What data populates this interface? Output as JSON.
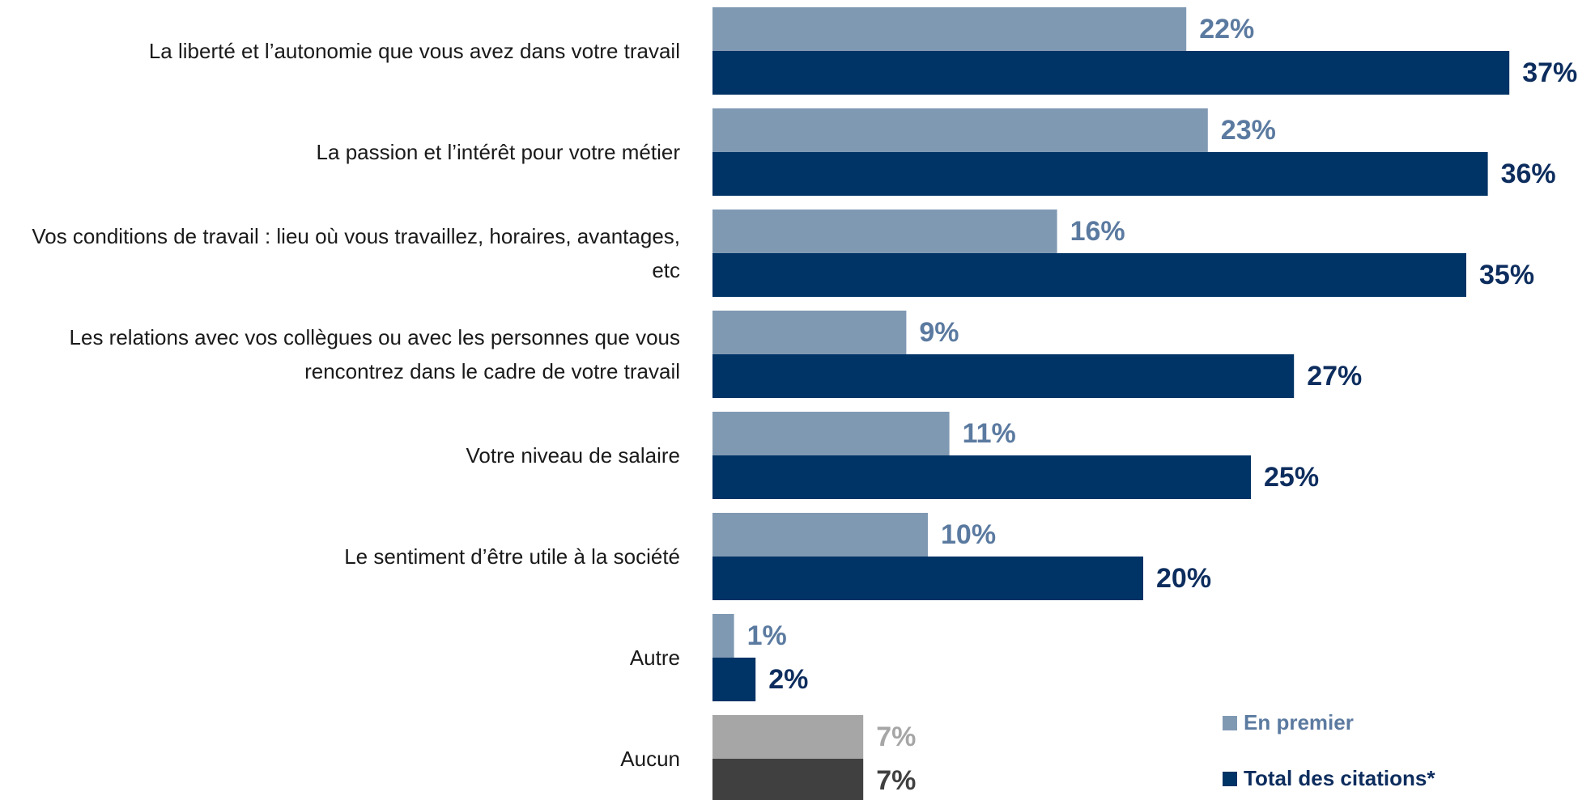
{
  "chart_data": {
    "type": "hbar",
    "categories": [
      "La liberté et l’autonomie que vous avez dans votre travail",
      "La passion et l’intérêt pour votre métier",
      "Vos conditions de travail : lieu où vous travaillez, horaires, avantages, etc",
      "Les relations avec vos collègues ou avec les personnes que vous rencontrez dans le cadre de votre travail",
      "Votre niveau de salaire",
      "Le sentiment d’être utile à la société",
      "Autre",
      "Aucun"
    ],
    "series": [
      {
        "name": "En premier",
        "color": "#8099b3",
        "label_color": "#5b7aa0",
        "colors": [
          "#8099b3",
          "#8099b3",
          "#8099b3",
          "#8099b3",
          "#8099b3",
          "#8099b3",
          "#8099b3",
          "#a6a6a6"
        ],
        "label_colors": [
          "#5b7aa0",
          "#5b7aa0",
          "#5b7aa0",
          "#5b7aa0",
          "#5b7aa0",
          "#5b7aa0",
          "#5b7aa0",
          "#a6a6a6"
        ],
        "values": [
          22,
          23,
          16,
          9,
          11,
          10,
          1,
          7
        ],
        "value_labels": [
          "22%",
          "23%",
          "16%",
          "9%",
          "11%",
          "10%",
          "1%",
          "7%"
        ]
      },
      {
        "name": "Total des citations*",
        "color": "#003366",
        "label_color": "#0d2d5e",
        "colors": [
          "#003366",
          "#003366",
          "#003366",
          "#003366",
          "#003366",
          "#003366",
          "#003366",
          "#404040"
        ],
        "label_colors": [
          "#0d2d5e",
          "#0d2d5e",
          "#0d2d5e",
          "#0d2d5e",
          "#0d2d5e",
          "#0d2d5e",
          "#0d2d5e",
          "#404040"
        ],
        "values": [
          37,
          36,
          35,
          27,
          25,
          20,
          2,
          7
        ],
        "value_labels": [
          "37%",
          "36%",
          "35%",
          "27%",
          "25%",
          "20%",
          "2%",
          "7%"
        ]
      }
    ],
    "xlim": [
      0,
      40
    ],
    "legend": "lower right"
  }
}
